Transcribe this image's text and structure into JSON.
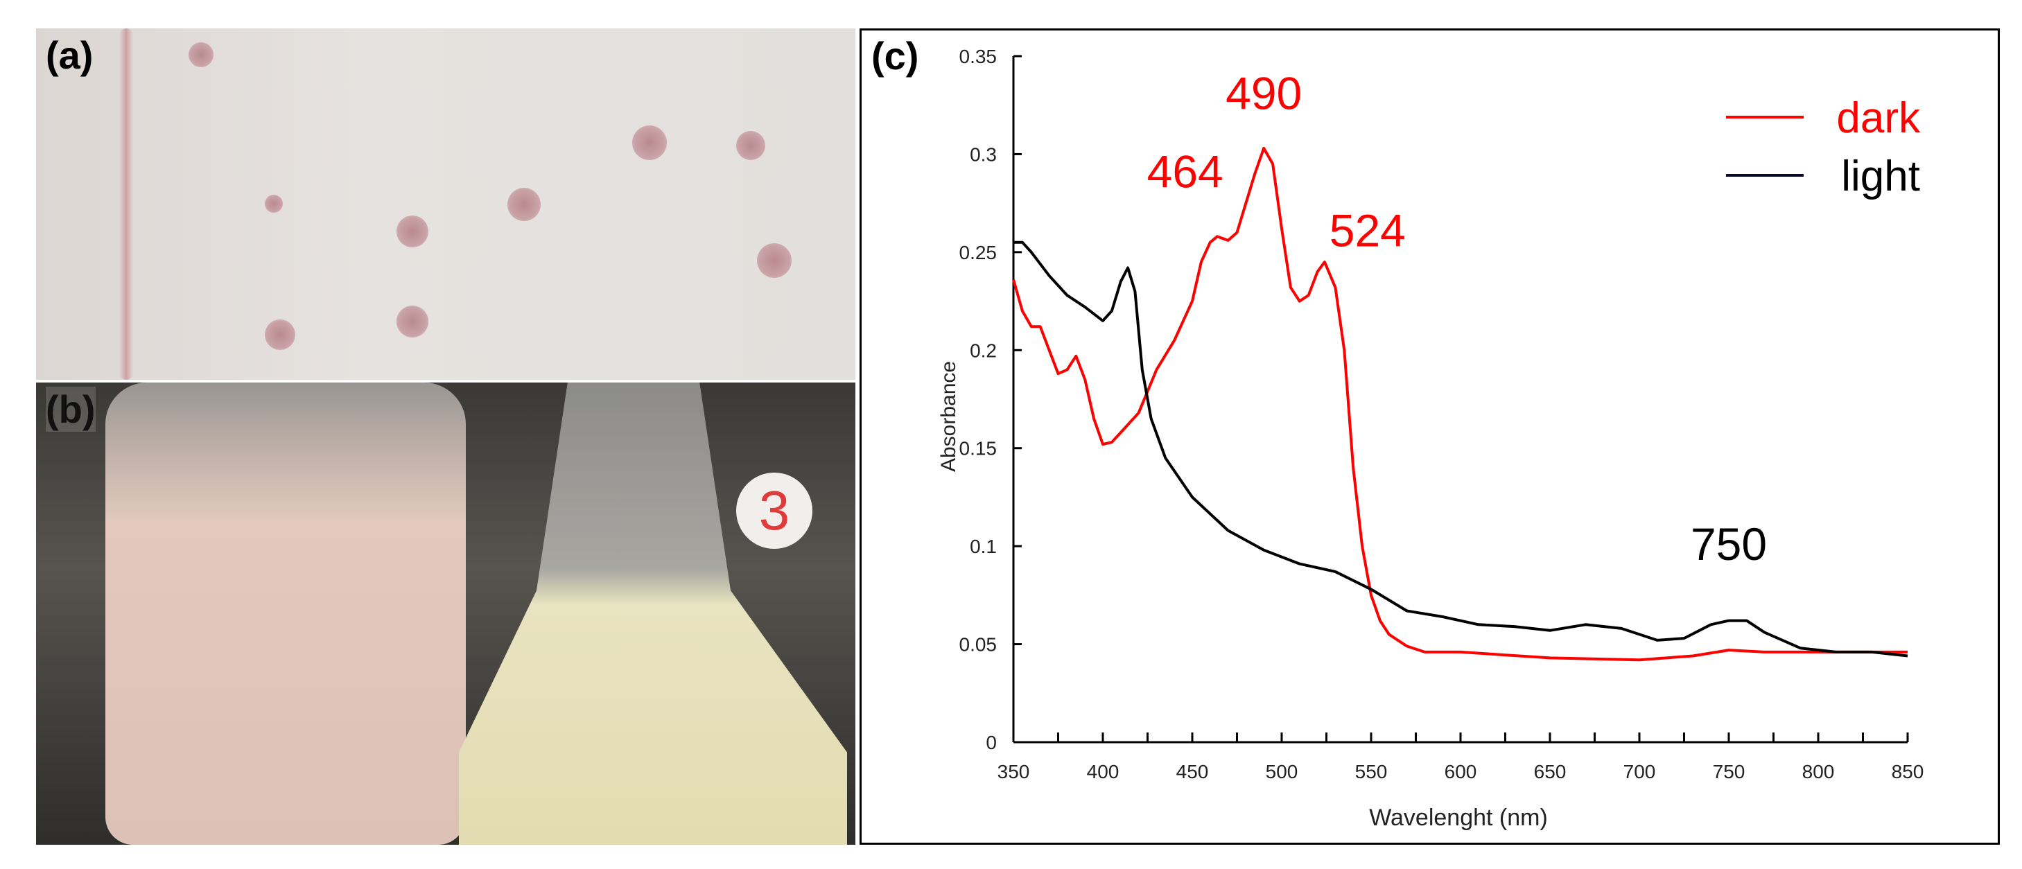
{
  "panels": {
    "a": {
      "label": "(a)"
    },
    "b": {
      "label": "(b)",
      "flask_tag": "3"
    },
    "c": {
      "label": "(c)"
    }
  },
  "chart_data": {
    "type": "line",
    "xlabel": "Wavelenght (nm)",
    "ylabel": "Absorbance",
    "xlim": [
      350,
      850
    ],
    "ylim": [
      0,
      0.35
    ],
    "xticks": [
      350,
      400,
      450,
      500,
      550,
      600,
      650,
      700,
      750,
      800,
      850
    ],
    "yticks": [
      0,
      0.05,
      0.1,
      0.15,
      0.2,
      0.25,
      0.3,
      0.35
    ],
    "ytick_labels": [
      "0",
      "0.05",
      "0.1",
      "0.15",
      "0.2",
      "0.25",
      "0.3",
      "0.35"
    ],
    "grid": false,
    "legend_position": "top-right",
    "series": [
      {
        "name": "dark",
        "color": "#ff0000",
        "x": [
          350,
          355,
          360,
          365,
          370,
          375,
          380,
          385,
          390,
          395,
          400,
          405,
          410,
          420,
          430,
          440,
          450,
          455,
          460,
          464,
          470,
          475,
          480,
          485,
          490,
          495,
          500,
          505,
          510,
          515,
          520,
          524,
          530,
          535,
          540,
          545,
          550,
          555,
          560,
          570,
          580,
          600,
          650,
          700,
          730,
          750,
          770,
          800,
          850
        ],
        "y": [
          0.236,
          0.22,
          0.212,
          0.212,
          0.2,
          0.188,
          0.19,
          0.197,
          0.185,
          0.165,
          0.152,
          0.153,
          0.158,
          0.168,
          0.19,
          0.205,
          0.225,
          0.245,
          0.255,
          0.258,
          0.256,
          0.26,
          0.275,
          0.29,
          0.303,
          0.295,
          0.262,
          0.232,
          0.225,
          0.228,
          0.24,
          0.245,
          0.232,
          0.2,
          0.14,
          0.1,
          0.075,
          0.062,
          0.055,
          0.049,
          0.046,
          0.046,
          0.043,
          0.042,
          0.044,
          0.047,
          0.046,
          0.046,
          0.046
        ]
      },
      {
        "name": "light",
        "color": "#000000",
        "x": [
          350,
          355,
          360,
          370,
          380,
          390,
          400,
          405,
          410,
          414,
          418,
          422,
          427,
          435,
          450,
          470,
          490,
          510,
          530,
          550,
          570,
          590,
          610,
          630,
          650,
          670,
          690,
          710,
          725,
          740,
          750,
          760,
          770,
          790,
          810,
          830,
          850
        ],
        "y": [
          0.255,
          0.255,
          0.25,
          0.238,
          0.228,
          0.222,
          0.215,
          0.22,
          0.235,
          0.242,
          0.23,
          0.19,
          0.165,
          0.145,
          0.125,
          0.108,
          0.098,
          0.091,
          0.087,
          0.078,
          0.067,
          0.064,
          0.06,
          0.059,
          0.057,
          0.06,
          0.058,
          0.052,
          0.053,
          0.06,
          0.062,
          0.062,
          0.056,
          0.048,
          0.046,
          0.046,
          0.044
        ]
      }
    ],
    "annotations": [
      {
        "text": "464",
        "x": 446,
        "y": 0.283,
        "color": "#ff0000"
      },
      {
        "text": "490",
        "x": 490,
        "y": 0.323,
        "color": "#ff0000"
      },
      {
        "text": "524",
        "x": 548,
        "y": 0.253,
        "color": "#ff0000"
      },
      {
        "text": "750",
        "x": 750,
        "y": 0.093,
        "color": "#000000"
      }
    ]
  }
}
